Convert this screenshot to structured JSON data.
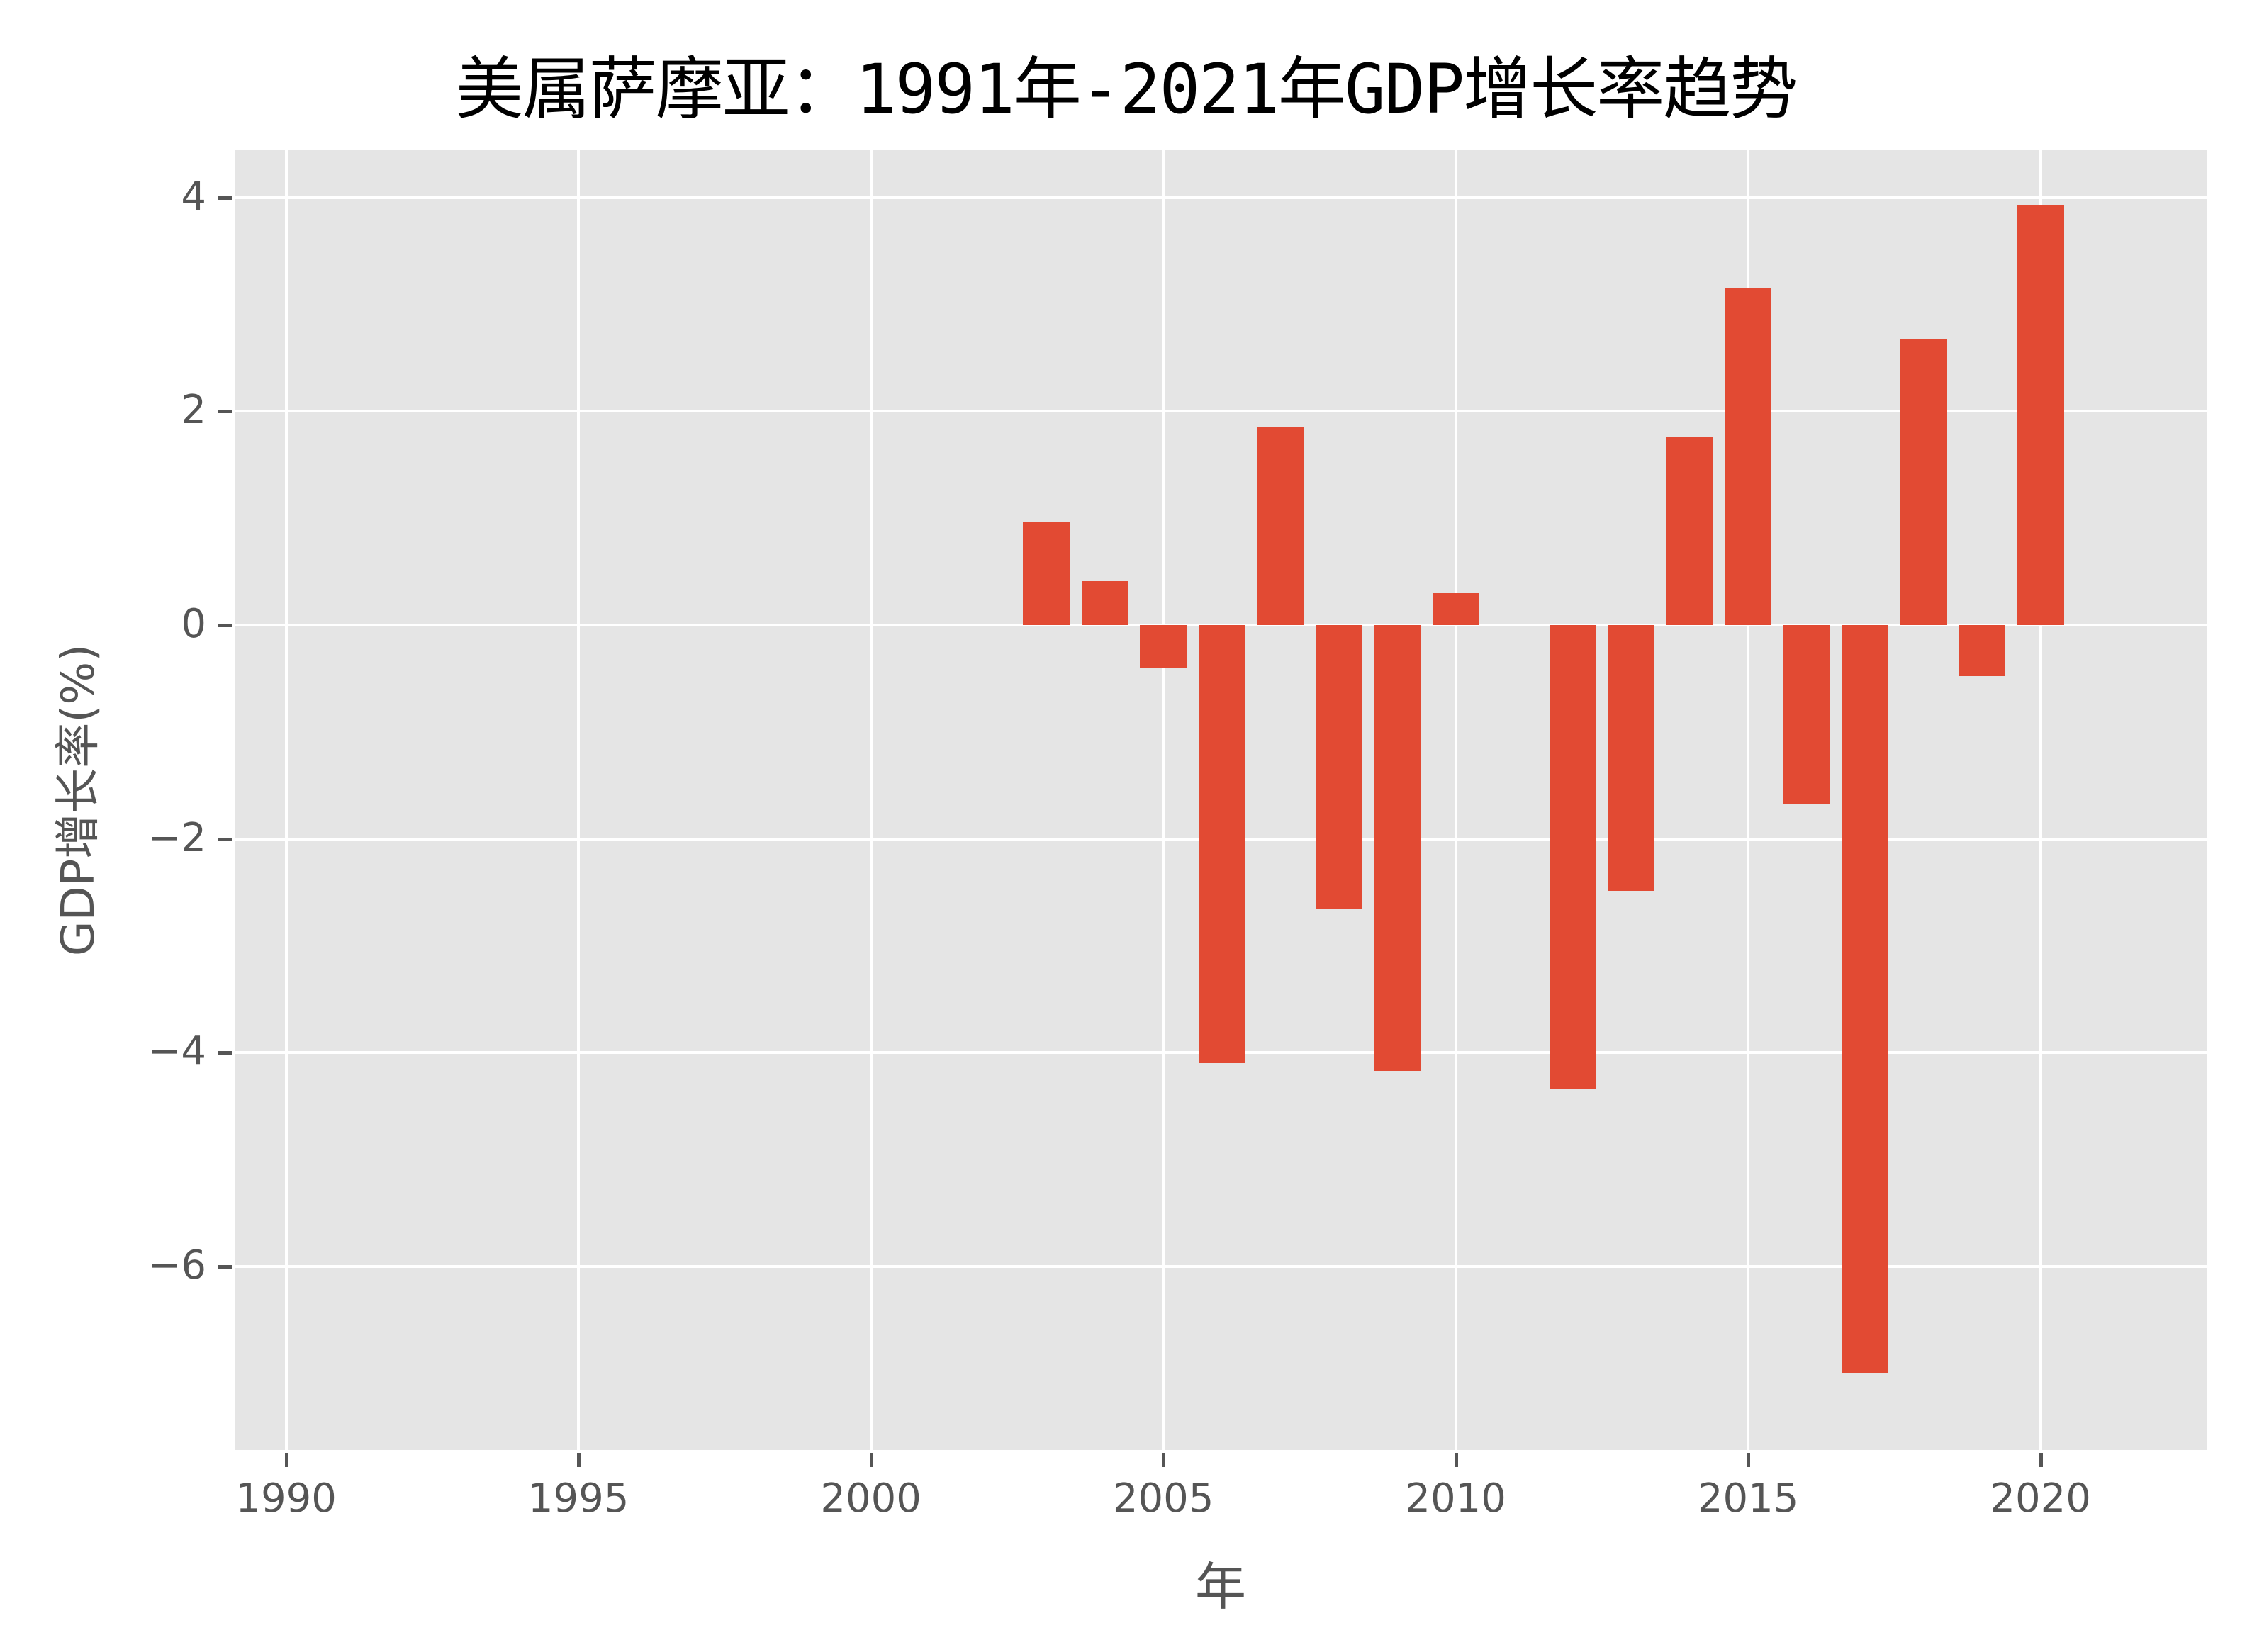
{
  "chart_data": {
    "type": "bar",
    "title": "美属萨摩亚：1991年-2021年GDP增长率趋势",
    "xlabel": "年",
    "ylabel": "GDP增长率(%)",
    "categories": [
      2003,
      2004,
      2005,
      2006,
      2007,
      2008,
      2009,
      2010,
      2012,
      2013,
      2014,
      2015,
      2016,
      2017,
      2018,
      2019,
      2020
    ],
    "values": [
      0.97,
      0.41,
      -0.4,
      -4.1,
      1.86,
      -2.66,
      -4.17,
      0.3,
      -4.34,
      -2.49,
      1.76,
      3.16,
      -1.67,
      -7.0,
      2.68,
      -0.48,
      3.93
    ],
    "xlim": [
      1989.12,
      2022.84
    ],
    "ylim": [
      -7.72,
      4.45
    ],
    "xticks": [
      1990,
      1995,
      2000,
      2005,
      2010,
      2015,
      2020
    ],
    "xtick_labels": [
      "1990",
      "1995",
      "2000",
      "2005",
      "2010",
      "2015",
      "2020"
    ],
    "yticks": [
      4,
      2,
      0,
      -2,
      -4,
      -6
    ],
    "ytick_labels": [
      "4",
      "2",
      "0",
      "−2",
      "−4",
      "−6"
    ],
    "bar_width": 0.8,
    "grid": true,
    "legend": null,
    "colors": {
      "bar": "#e24a33",
      "plot_bg": "#e5e5e5",
      "grid": "#ffffff",
      "tick_text": "#555555"
    }
  }
}
